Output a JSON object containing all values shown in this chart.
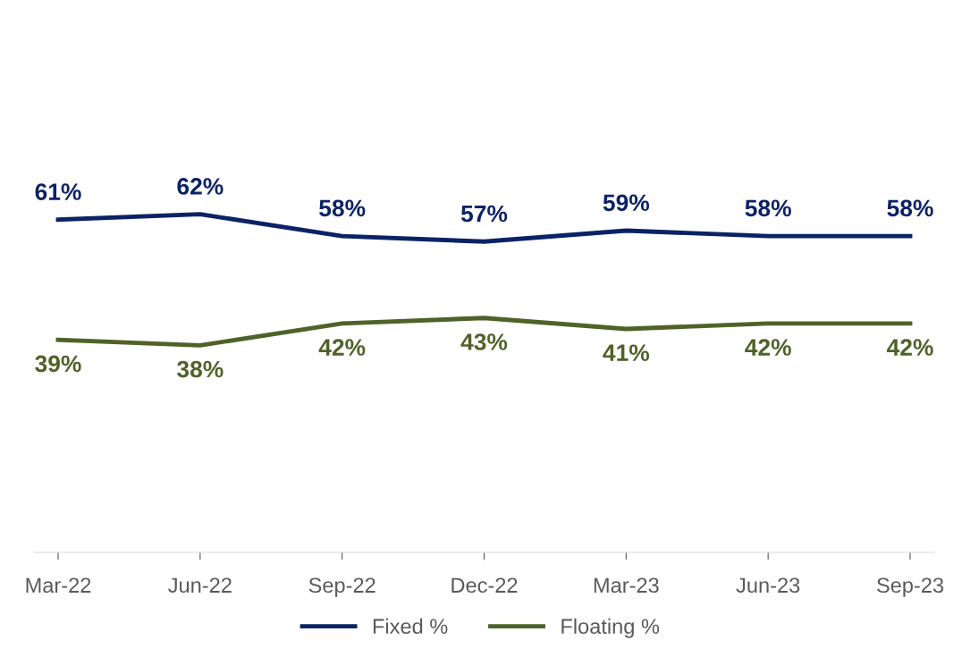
{
  "chart_data": {
    "type": "line",
    "categories": [
      "Mar-22",
      "Jun-22",
      "Sep-22",
      "Dec-22",
      "Mar-23",
      "Jun-23",
      "Sep-23"
    ],
    "series": [
      {
        "name": "Fixed %",
        "color": "#0b2265",
        "values": [
          61,
          62,
          58,
          57,
          59,
          58,
          58
        ],
        "value_labels": [
          "61%",
          "62%",
          "58%",
          "57%",
          "59%",
          "58%",
          "58%"
        ]
      },
      {
        "name": "Floating %",
        "color": "#4f6228",
        "values": [
          39,
          38,
          42,
          43,
          41,
          42,
          42
        ],
        "value_labels": [
          "39%",
          "38%",
          "42%",
          "43%",
          "41%",
          "42%",
          "42%"
        ]
      }
    ],
    "tick_labels": "x",
    "legend": "bottom",
    "marker": "none",
    "line_style": "solid"
  }
}
